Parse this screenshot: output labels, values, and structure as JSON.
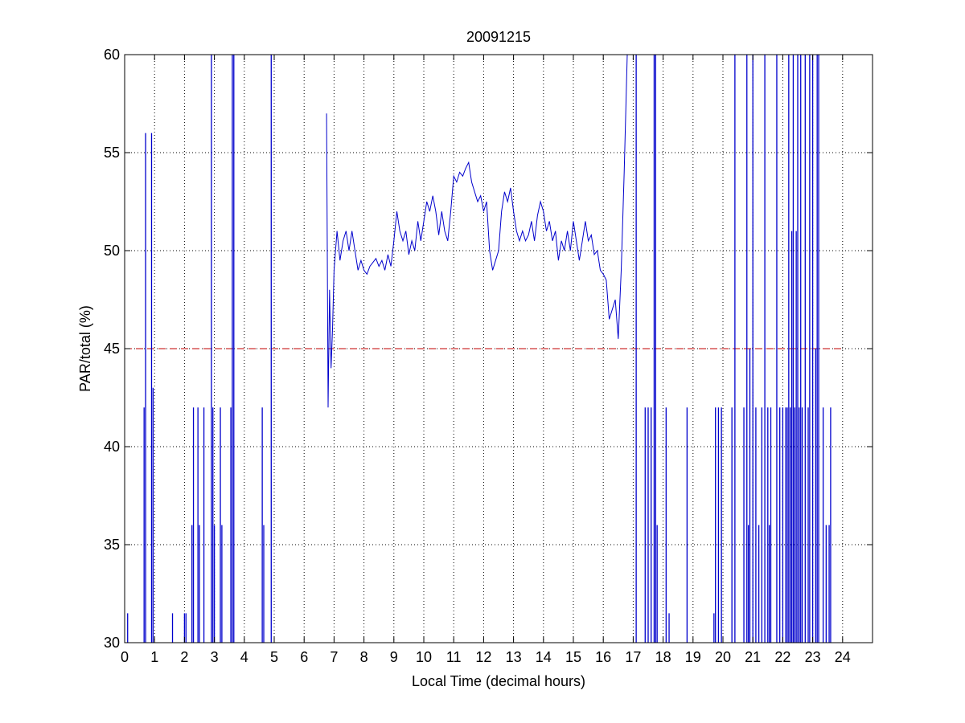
{
  "chart_data": {
    "type": "line",
    "title": "20091215",
    "xlabel": "Local Time (decimal hours)",
    "ylabel": "PAR/total (%)",
    "xlim": [
      0,
      25
    ],
    "ylim": [
      30,
      60
    ],
    "xticks": [
      0,
      1,
      2,
      3,
      4,
      5,
      6,
      7,
      8,
      9,
      10,
      11,
      12,
      13,
      14,
      15,
      16,
      17,
      18,
      19,
      20,
      21,
      22,
      23,
      24
    ],
    "yticks": [
      30,
      35,
      40,
      45,
      50,
      55,
      60
    ],
    "grid": true,
    "reference_line": {
      "y": 45,
      "x_range": [
        0,
        24
      ],
      "style": "dashed",
      "color": "#c00000"
    },
    "series": [
      {
        "color": "#0000cc",
        "x": [
          6.75,
          6.8,
          6.85,
          6.9,
          6.95,
          7.0,
          7.1,
          7.2,
          7.3,
          7.4,
          7.5,
          7.6,
          7.7,
          7.8,
          7.9,
          8.0,
          8.1,
          8.2,
          8.3,
          8.4,
          8.5,
          8.6,
          8.7,
          8.8,
          8.9,
          9.0,
          9.1,
          9.2,
          9.3,
          9.4,
          9.5,
          9.6,
          9.7,
          9.8,
          9.9,
          10.0,
          10.1,
          10.2,
          10.3,
          10.4,
          10.5,
          10.6,
          10.7,
          10.8,
          10.9,
          11.0,
          11.1,
          11.2,
          11.3,
          11.4,
          11.5,
          11.6,
          11.7,
          11.8,
          11.9,
          12.0,
          12.1,
          12.2,
          12.3,
          12.4,
          12.5,
          12.6,
          12.7,
          12.8,
          12.9,
          13.0,
          13.1,
          13.2,
          13.3,
          13.4,
          13.5,
          13.6,
          13.7,
          13.8,
          13.9,
          14.0,
          14.1,
          14.2,
          14.3,
          14.4,
          14.5,
          14.6,
          14.7,
          14.8,
          14.9,
          15.0,
          15.1,
          15.2,
          15.3,
          15.4,
          15.5,
          15.6,
          15.7,
          15.8,
          15.9,
          16.0,
          16.1,
          16.2,
          16.3,
          16.4,
          16.5,
          16.6,
          16.7,
          16.8
        ],
        "y": [
          57,
          42,
          48,
          44,
          46,
          49,
          51,
          49.5,
          50.5,
          51,
          50,
          51,
          50,
          49,
          49.5,
          49,
          48.8,
          49.2,
          49.4,
          49.6,
          49.2,
          49.5,
          49,
          49.8,
          49.2,
          50.5,
          52,
          51,
          50.5,
          51,
          49.8,
          50.5,
          50,
          51.5,
          50.5,
          51.5,
          52.5,
          52,
          52.8,
          52,
          50.8,
          52,
          51,
          50.5,
          52,
          53.8,
          53.5,
          54,
          53.8,
          54.2,
          54.5,
          53.5,
          53,
          52.5,
          52.8,
          52,
          52.5,
          50,
          49,
          49.5,
          50,
          52,
          53,
          52.5,
          53.2,
          52,
          51,
          50.5,
          51,
          50.5,
          50.8,
          51.5,
          50.5,
          51.8,
          52.5,
          52,
          51,
          51.5,
          50.5,
          51,
          49.5,
          50.5,
          50,
          51,
          50,
          51.5,
          50.5,
          49.5,
          50.5,
          51.5,
          50.5,
          50.8,
          49.8,
          50,
          49,
          48.8,
          48.5,
          46.5,
          47,
          47.5,
          45.5,
          49,
          54,
          60
        ]
      }
    ],
    "spikes": [
      {
        "x": 0.1,
        "y": 31.5
      },
      {
        "x": 0.65,
        "y": 42
      },
      {
        "x": 0.7,
        "y": 56
      },
      {
        "x": 0.9,
        "y": 56
      },
      {
        "x": 0.95,
        "y": 43
      },
      {
        "x": 1.6,
        "y": 31.5
      },
      {
        "x": 2.0,
        "y": 31.5
      },
      {
        "x": 2.05,
        "y": 31.5
      },
      {
        "x": 2.25,
        "y": 36
      },
      {
        "x": 2.3,
        "y": 42
      },
      {
        "x": 2.45,
        "y": 42
      },
      {
        "x": 2.5,
        "y": 36
      },
      {
        "x": 2.65,
        "y": 42
      },
      {
        "x": 2.9,
        "y": 60
      },
      {
        "x": 2.95,
        "y": 42
      },
      {
        "x": 3.0,
        "y": 36
      },
      {
        "x": 3.2,
        "y": 42
      },
      {
        "x": 3.25,
        "y": 36
      },
      {
        "x": 3.55,
        "y": 42
      },
      {
        "x": 3.6,
        "y": 60
      },
      {
        "x": 3.65,
        "y": 60
      },
      {
        "x": 4.6,
        "y": 42
      },
      {
        "x": 4.65,
        "y": 36
      },
      {
        "x": 4.9,
        "y": 60
      },
      {
        "x": 17.1,
        "y": 60
      },
      {
        "x": 17.4,
        "y": 42
      },
      {
        "x": 17.5,
        "y": 42
      },
      {
        "x": 17.6,
        "y": 42
      },
      {
        "x": 17.7,
        "y": 60
      },
      {
        "x": 17.75,
        "y": 60
      },
      {
        "x": 17.8,
        "y": 36
      },
      {
        "x": 18.1,
        "y": 42
      },
      {
        "x": 18.2,
        "y": 31.5
      },
      {
        "x": 18.8,
        "y": 42
      },
      {
        "x": 19.7,
        "y": 31.5
      },
      {
        "x": 19.75,
        "y": 42
      },
      {
        "x": 19.85,
        "y": 42
      },
      {
        "x": 19.95,
        "y": 42
      },
      {
        "x": 20.3,
        "y": 42
      },
      {
        "x": 20.4,
        "y": 60
      },
      {
        "x": 20.7,
        "y": 42
      },
      {
        "x": 20.8,
        "y": 60
      },
      {
        "x": 20.85,
        "y": 36
      },
      {
        "x": 20.9,
        "y": 45
      },
      {
        "x": 21.0,
        "y": 60
      },
      {
        "x": 21.1,
        "y": 42
      },
      {
        "x": 21.2,
        "y": 36
      },
      {
        "x": 21.3,
        "y": 42
      },
      {
        "x": 21.4,
        "y": 60
      },
      {
        "x": 21.5,
        "y": 42
      },
      {
        "x": 21.55,
        "y": 36
      },
      {
        "x": 21.6,
        "y": 42
      },
      {
        "x": 21.8,
        "y": 60
      },
      {
        "x": 21.9,
        "y": 42
      },
      {
        "x": 22.0,
        "y": 42
      },
      {
        "x": 22.1,
        "y": 42
      },
      {
        "x": 22.15,
        "y": 42
      },
      {
        "x": 22.2,
        "y": 60
      },
      {
        "x": 22.25,
        "y": 42
      },
      {
        "x": 22.3,
        "y": 51
      },
      {
        "x": 22.35,
        "y": 60
      },
      {
        "x": 22.4,
        "y": 42
      },
      {
        "x": 22.45,
        "y": 51
      },
      {
        "x": 22.5,
        "y": 60
      },
      {
        "x": 22.55,
        "y": 42
      },
      {
        "x": 22.6,
        "y": 60
      },
      {
        "x": 22.65,
        "y": 42
      },
      {
        "x": 22.75,
        "y": 60
      },
      {
        "x": 22.85,
        "y": 42
      },
      {
        "x": 22.9,
        "y": 60
      },
      {
        "x": 23.0,
        "y": 60
      },
      {
        "x": 23.1,
        "y": 45
      },
      {
        "x": 23.15,
        "y": 60
      },
      {
        "x": 23.2,
        "y": 60
      },
      {
        "x": 23.35,
        "y": 42
      },
      {
        "x": 23.45,
        "y": 36
      },
      {
        "x": 23.55,
        "y": 36
      },
      {
        "x": 23.6,
        "y": 42
      }
    ]
  }
}
